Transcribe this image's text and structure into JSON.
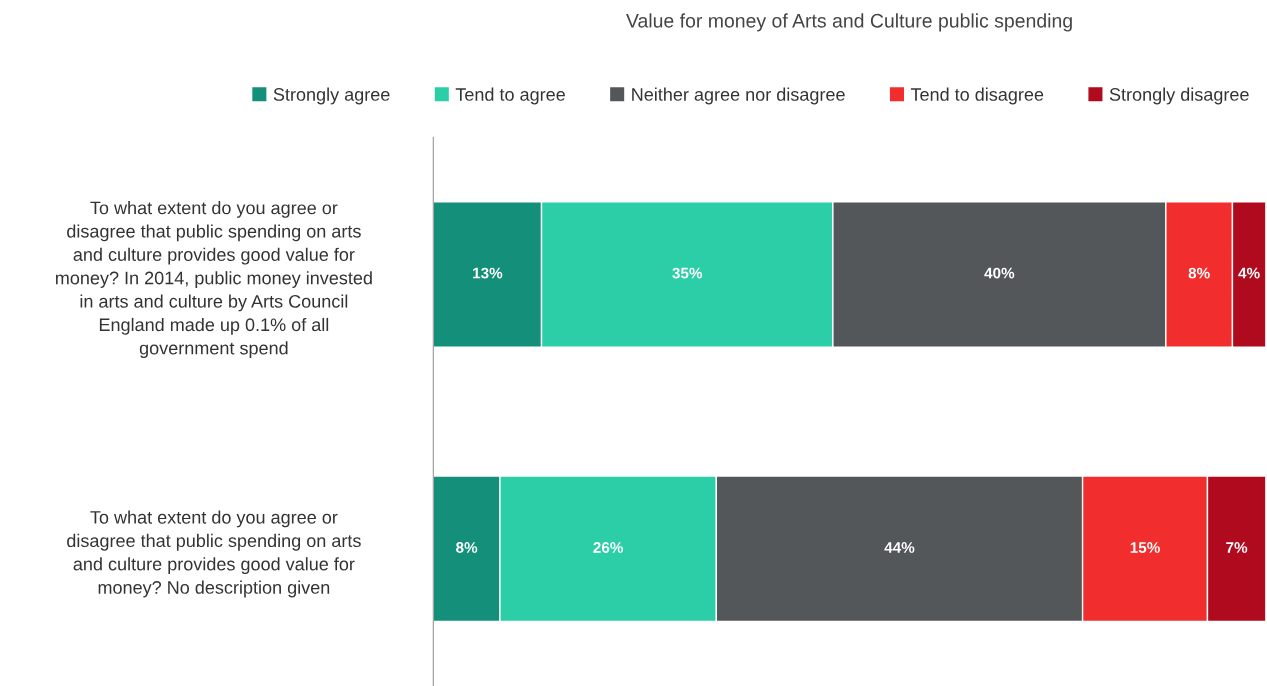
{
  "chart_data": {
    "type": "bar",
    "orientation": "horizontal",
    "stacked": true,
    "title": "Value for money of Arts and Culture public spending",
    "categories": [
      "To what extent do you agree or\ndisagree that public spending on arts\nand culture provides good value for\nmoney? In 2014, public money invested\nin arts and culture by Arts Council\nEngland made up 0.1% of all\ngovernment spend",
      "To what extent do you agree or\ndisagree that public spending on arts\nand culture provides good value for\nmoney? No description given"
    ],
    "series": [
      {
        "name": "Strongly agree",
        "color": "#138f7a",
        "values": [
          13,
          8
        ],
        "value_labels": [
          "13%",
          "8%"
        ]
      },
      {
        "name": "Tend to agree",
        "color": "#2bcea7",
        "values": [
          35,
          26
        ],
        "value_labels": [
          "35%",
          "26%"
        ]
      },
      {
        "name": "Neither agree nor disagree",
        "color": "#54575a",
        "values": [
          40,
          44
        ],
        "value_labels": [
          "40%",
          "44%"
        ]
      },
      {
        "name": "Tend to disagree",
        "color": "#f12d2d",
        "values": [
          8,
          15
        ],
        "value_labels": [
          "8%",
          "15%"
        ]
      },
      {
        "name": "Strongly disagree",
        "color": "#b00a1e",
        "values": [
          4,
          7
        ],
        "value_labels": [
          "4%",
          "7%"
        ]
      }
    ],
    "legend": "top",
    "grid": false
  }
}
